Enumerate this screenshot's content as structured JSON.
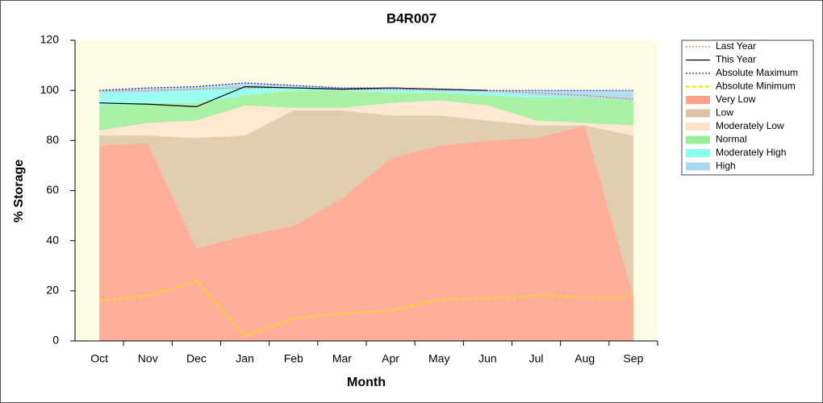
{
  "chart_data": {
    "type": "area",
    "title": "B4R007",
    "x_label": "Month",
    "y_label": "% Storage",
    "categories": [
      "Oct",
      "Nov",
      "Dec",
      "Jan",
      "Feb",
      "Mar",
      "Apr",
      "May",
      "Jun",
      "Jul",
      "Aug",
      "Sep"
    ],
    "ylim": [
      0,
      120
    ],
    "yticks": [
      0,
      20,
      40,
      60,
      80,
      100,
      120
    ],
    "series": [
      {
        "name": "Last Year",
        "kind": "line",
        "style": "dotted",
        "color": "#d08040",
        "values": [
          100,
          100,
          100.5,
          101,
          101,
          100.5,
          100.5,
          100,
          100,
          99,
          98,
          96.5
        ]
      },
      {
        "name": "This Year",
        "kind": "line",
        "style": "solid",
        "color": "#000000",
        "values": [
          95,
          94.5,
          93.5,
          101.5,
          101,
          100.5,
          101,
          100.5,
          100,
          null,
          null,
          null
        ]
      },
      {
        "name": "Absolute Maximum",
        "kind": "line",
        "style": "dotted",
        "color": "#2020c0",
        "values": [
          100,
          101,
          101.5,
          103,
          102,
          101,
          101,
          100.5,
          100,
          100,
          100,
          100
        ]
      },
      {
        "name": "Absolute Minimum",
        "kind": "line",
        "style": "dashed",
        "color": "#f0e000",
        "values": [
          16,
          18,
          24,
          2,
          9,
          11,
          12,
          16.5,
          17,
          18,
          17.5,
          17.5
        ]
      },
      {
        "name": "Very Low",
        "kind": "band",
        "color": "#ffa08c",
        "values": [
          78,
          79,
          37,
          42,
          46,
          57,
          73,
          78,
          80,
          81,
          86,
          18
        ]
      },
      {
        "name": "Low",
        "kind": "band",
        "color": "#dcc4a4",
        "values": [
          4,
          3,
          44,
          40,
          46,
          35,
          17,
          12,
          8,
          5,
          0,
          64
        ]
      },
      {
        "name": "Moderately Low",
        "kind": "band",
        "color": "#ffe4cc",
        "values": [
          2,
          5,
          7,
          12,
          1,
          1,
          5,
          6,
          6,
          2,
          1,
          4
        ]
      },
      {
        "name": "Normal",
        "kind": "band",
        "color": "#99ee99",
        "values": [
          10,
          8,
          7,
          4,
          7,
          7,
          4,
          3,
          4,
          9,
          10,
          10
        ]
      },
      {
        "name": "Moderately High",
        "kind": "band",
        "color": "#88ffee",
        "values": [
          5,
          4,
          5,
          3,
          1,
          0,
          1,
          1,
          1,
          1,
          0,
          0
        ]
      },
      {
        "name": "High",
        "kind": "band",
        "color": "#a8d8f0",
        "values": [
          1,
          2,
          1.5,
          2,
          1,
          1,
          1,
          0.5,
          1,
          2,
          3,
          4
        ]
      }
    ]
  }
}
